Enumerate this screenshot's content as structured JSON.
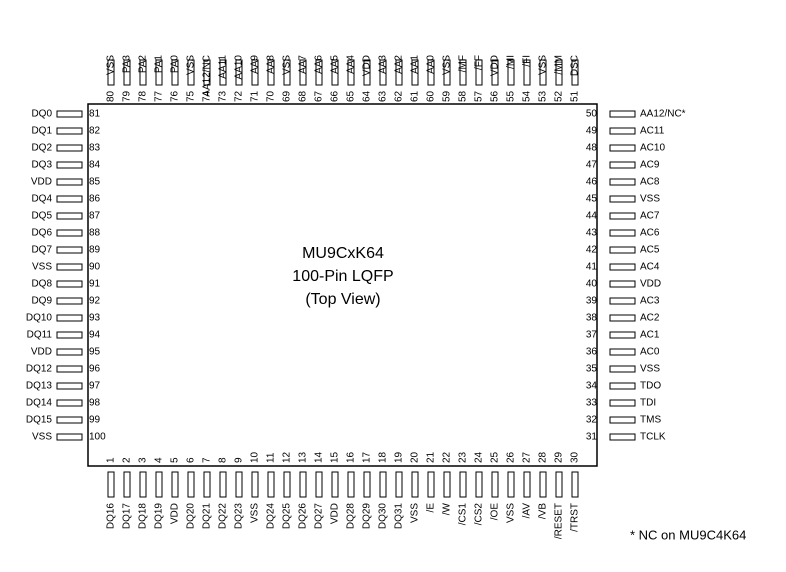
{
  "title": [
    "MU9CxK64",
    "100-Pin LQFP",
    "(Top View)"
  ],
  "note": "* NC on MU9C4K64",
  "pins": {
    "top": [
      [
        "80",
        "VSS"
      ],
      [
        "79",
        "PA3"
      ],
      [
        "78",
        "PA2"
      ],
      [
        "77",
        "PA1"
      ],
      [
        "76",
        "PA0"
      ],
      [
        "75",
        "VSS"
      ],
      [
        "74",
        "AA12/NC"
      ],
      [
        "73",
        "AA11"
      ],
      [
        "72",
        "AA10"
      ],
      [
        "71",
        "AA9"
      ],
      [
        "70",
        "AA8"
      ],
      [
        "69",
        "VSS"
      ],
      [
        "68",
        "AA7"
      ],
      [
        "67",
        "AA6"
      ],
      [
        "66",
        "AA5"
      ],
      [
        "65",
        "AA4"
      ],
      [
        "64",
        "VDD"
      ],
      [
        "63",
        "AA3"
      ],
      [
        "62",
        "AA2"
      ],
      [
        "61",
        "AA1"
      ],
      [
        "60",
        "AA0"
      ],
      [
        "59",
        "VSS"
      ],
      [
        "58",
        "/MF"
      ],
      [
        "57",
        "/FF"
      ],
      [
        "56",
        "VDD"
      ],
      [
        "55",
        "/MI"
      ],
      [
        "54",
        "/FI"
      ],
      [
        "53",
        "VSS"
      ],
      [
        "52",
        "/MM"
      ],
      [
        "51",
        "DSC"
      ]
    ],
    "bottom": [
      [
        "1",
        "DQ16"
      ],
      [
        "2",
        "DQ17"
      ],
      [
        "3",
        "DQ18"
      ],
      [
        "4",
        "DQ19"
      ],
      [
        "5",
        "VDD"
      ],
      [
        "6",
        "DQ20"
      ],
      [
        "7",
        "DQ21"
      ],
      [
        "8",
        "DQ22"
      ],
      [
        "9",
        "DQ23"
      ],
      [
        "10",
        "VSS"
      ],
      [
        "11",
        "DQ24"
      ],
      [
        "12",
        "DQ25"
      ],
      [
        "13",
        "DQ26"
      ],
      [
        "14",
        "DQ27"
      ],
      [
        "15",
        "VDD"
      ],
      [
        "16",
        "DQ28"
      ],
      [
        "17",
        "DQ29"
      ],
      [
        "18",
        "DQ30"
      ],
      [
        "19",
        "DQ31"
      ],
      [
        "20",
        "VSS"
      ],
      [
        "21",
        "/E"
      ],
      [
        "22",
        "/W"
      ],
      [
        "23",
        "/CS1"
      ],
      [
        "24",
        "/CS2"
      ],
      [
        "25",
        "/OE"
      ],
      [
        "26",
        "VSS"
      ],
      [
        "27",
        "/AV"
      ],
      [
        "28",
        "/VB"
      ],
      [
        "29",
        "/RESET"
      ],
      [
        "30",
        "/TRST"
      ]
    ],
    "left": [
      [
        "81",
        "DQ0"
      ],
      [
        "82",
        "DQ1"
      ],
      [
        "83",
        "DQ2"
      ],
      [
        "84",
        "DQ3"
      ],
      [
        "85",
        "VDD"
      ],
      [
        "86",
        "DQ4"
      ],
      [
        "87",
        "DQ5"
      ],
      [
        "88",
        "DQ6"
      ],
      [
        "89",
        "DQ7"
      ],
      [
        "90",
        "VSS"
      ],
      [
        "91",
        "DQ8"
      ],
      [
        "92",
        "DQ9"
      ],
      [
        "93",
        "DQ10"
      ],
      [
        "94",
        "DQ11"
      ],
      [
        "95",
        "VDD"
      ],
      [
        "96",
        "DQ12"
      ],
      [
        "97",
        "DQ13"
      ],
      [
        "98",
        "DQ14"
      ],
      [
        "99",
        "DQ15"
      ],
      [
        "100",
        "VSS"
      ]
    ],
    "right": [
      [
        "50",
        "AA12/NC*"
      ],
      [
        "49",
        "AC11"
      ],
      [
        "48",
        "AC10"
      ],
      [
        "47",
        "AC9"
      ],
      [
        "46",
        "AC8"
      ],
      [
        "45",
        "VSS"
      ],
      [
        "44",
        "AC7"
      ],
      [
        "43",
        "AC6"
      ],
      [
        "42",
        "AC5"
      ],
      [
        "41",
        "AC4"
      ],
      [
        "40",
        "VDD"
      ],
      [
        "39",
        "AC3"
      ],
      [
        "38",
        "AC2"
      ],
      [
        "37",
        "AC1"
      ],
      [
        "36",
        "AC0"
      ],
      [
        "35",
        "VSS"
      ],
      [
        "34",
        "TDO"
      ],
      [
        "33",
        "TDI"
      ],
      [
        "32",
        "TMS"
      ],
      [
        "31",
        "TCLK"
      ]
    ]
  }
}
